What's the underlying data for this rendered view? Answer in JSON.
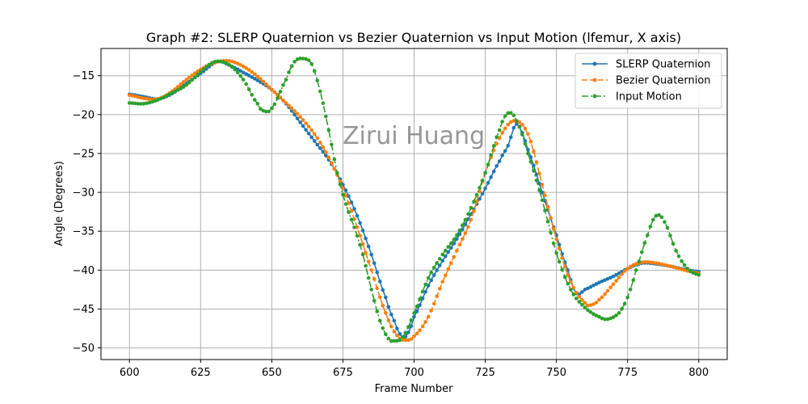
{
  "chart_data": {
    "type": "line",
    "title": "Graph #2: SLERP Quaternion vs Bezier Quaternion vs Input Motion (lfemur, X axis)",
    "xlabel": "Frame Number",
    "ylabel": "Angle (Degrees)",
    "xlim": [
      590,
      810
    ],
    "ylim": [
      -51.5,
      -11.5
    ],
    "xticks": [
      600,
      625,
      650,
      675,
      700,
      725,
      750,
      775,
      800
    ],
    "yticks": [
      -15,
      -20,
      -25,
      -30,
      -35,
      -40,
      -45,
      -50
    ],
    "xtick_labels": [
      "600",
      "625",
      "650",
      "675",
      "700",
      "725",
      "750",
      "775",
      "800"
    ],
    "ytick_labels": [
      "−15",
      "−20",
      "−25",
      "−30",
      "−35",
      "−40",
      "−45",
      "−50"
    ],
    "grid": true,
    "legend_position": "top-right",
    "watermark": "Zirui Huang",
    "series": [
      {
        "name": "SLERP Quaternion",
        "color": "#1f77b4",
        "style": "solid",
        "keypoints": [
          [
            600,
            -17.4
          ],
          [
            605,
            -17.7
          ],
          [
            610,
            -18.0
          ],
          [
            615,
            -17.3
          ],
          [
            620,
            -16.0
          ],
          [
            625,
            -14.7
          ],
          [
            631,
            -13.2
          ],
          [
            636,
            -13.8
          ],
          [
            640,
            -14.6
          ],
          [
            645,
            -15.6
          ],
          [
            650,
            -16.8
          ],
          [
            655,
            -18.6
          ],
          [
            660,
            -21.0
          ],
          [
            665,
            -23.4
          ],
          [
            670,
            -25.8
          ],
          [
            675,
            -29.0
          ],
          [
            680,
            -33.0
          ],
          [
            685,
            -38.0
          ],
          [
            690,
            -43.5
          ],
          [
            693,
            -46.5
          ],
          [
            695,
            -48.2
          ],
          [
            696,
            -48.8
          ],
          [
            698,
            -48.0
          ],
          [
            700,
            -46.0
          ],
          [
            705,
            -42.0
          ],
          [
            710,
            -38.8
          ],
          [
            715,
            -36.0
          ],
          [
            720,
            -32.8
          ],
          [
            725,
            -29.5
          ],
          [
            730,
            -26.0
          ],
          [
            733,
            -24.0
          ],
          [
            736,
            -21.2
          ],
          [
            740,
            -24.5
          ],
          [
            745,
            -30.0
          ],
          [
            750,
            -35.5
          ],
          [
            754,
            -40.0
          ],
          [
            757,
            -43.0
          ],
          [
            760,
            -42.5
          ],
          [
            765,
            -41.6
          ],
          [
            770,
            -40.8
          ],
          [
            775,
            -39.8
          ],
          [
            780,
            -39.1
          ],
          [
            785,
            -39.2
          ],
          [
            790,
            -39.5
          ],
          [
            795,
            -39.9
          ],
          [
            800,
            -40.2
          ]
        ]
      },
      {
        "name": "Bezier Quaternion",
        "color": "#ff7f0e",
        "style": "dashed",
        "keypoints": [
          [
            600,
            -17.5
          ],
          [
            605,
            -17.9
          ],
          [
            610,
            -18.0
          ],
          [
            615,
            -17.0
          ],
          [
            620,
            -15.5
          ],
          [
            625,
            -14.2
          ],
          [
            630,
            -13.3
          ],
          [
            635,
            -13.1
          ],
          [
            640,
            -13.8
          ],
          [
            645,
            -15.1
          ],
          [
            650,
            -16.8
          ],
          [
            655,
            -18.5
          ],
          [
            660,
            -20.3
          ],
          [
            665,
            -22.5
          ],
          [
            670,
            -25.5
          ],
          [
            675,
            -29.5
          ],
          [
            680,
            -34.5
          ],
          [
            685,
            -40.0
          ],
          [
            690,
            -45.5
          ],
          [
            694,
            -48.4
          ],
          [
            697,
            -49.0
          ],
          [
            700,
            -48.5
          ],
          [
            705,
            -46.0
          ],
          [
            710,
            -41.5
          ],
          [
            715,
            -37.5
          ],
          [
            720,
            -33.5
          ],
          [
            725,
            -27.5
          ],
          [
            730,
            -23.0
          ],
          [
            735,
            -20.8
          ],
          [
            740,
            -22.5
          ],
          [
            745,
            -29.0
          ],
          [
            750,
            -36.0
          ],
          [
            755,
            -41.5
          ],
          [
            760,
            -44.2
          ],
          [
            762,
            -44.5
          ],
          [
            765,
            -43.8
          ],
          [
            770,
            -41.8
          ],
          [
            775,
            -39.8
          ],
          [
            780,
            -39.0
          ],
          [
            785,
            -39.1
          ],
          [
            790,
            -39.5
          ],
          [
            795,
            -40.0
          ],
          [
            800,
            -40.4
          ]
        ]
      },
      {
        "name": "Input Motion",
        "color": "#2ca02c",
        "style": "dashdot",
        "keypoints": [
          [
            600,
            -18.5
          ],
          [
            605,
            -18.6
          ],
          [
            610,
            -18.1
          ],
          [
            615,
            -17.2
          ],
          [
            620,
            -16.2
          ],
          [
            625,
            -14.5
          ],
          [
            630,
            -13.2
          ],
          [
            635,
            -13.6
          ],
          [
            640,
            -15.5
          ],
          [
            645,
            -18.6
          ],
          [
            647,
            -19.5
          ],
          [
            650,
            -19.2
          ],
          [
            655,
            -15.5
          ],
          [
            658,
            -13.2
          ],
          [
            661,
            -12.8
          ],
          [
            664,
            -13.5
          ],
          [
            667,
            -17.0
          ],
          [
            670,
            -22.0
          ],
          [
            673,
            -27.5
          ],
          [
            676,
            -31.5
          ],
          [
            679,
            -34.5
          ],
          [
            682,
            -38.0
          ],
          [
            685,
            -42.5
          ],
          [
            688,
            -46.5
          ],
          [
            691,
            -48.8
          ],
          [
            693,
            -49.1
          ],
          [
            696,
            -48.6
          ],
          [
            700,
            -45.5
          ],
          [
            705,
            -41.0
          ],
          [
            710,
            -38.0
          ],
          [
            715,
            -35.5
          ],
          [
            720,
            -32.0
          ],
          [
            725,
            -27.5
          ],
          [
            730,
            -22.0
          ],
          [
            733,
            -19.8
          ],
          [
            736,
            -20.8
          ],
          [
            740,
            -25.0
          ],
          [
            745,
            -31.0
          ],
          [
            750,
            -37.8
          ],
          [
            755,
            -42.5
          ],
          [
            760,
            -44.8
          ],
          [
            765,
            -46.0
          ],
          [
            768,
            -46.3
          ],
          [
            772,
            -45.5
          ],
          [
            775,
            -43.5
          ],
          [
            778,
            -40.0
          ],
          [
            782,
            -35.5
          ],
          [
            785,
            -33.0
          ],
          [
            788,
            -33.8
          ],
          [
            792,
            -37.5
          ],
          [
            796,
            -39.8
          ],
          [
            800,
            -40.6
          ]
        ]
      }
    ]
  }
}
